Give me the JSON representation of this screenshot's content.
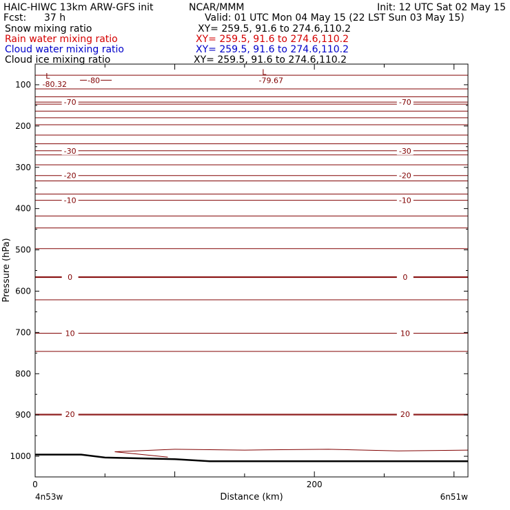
{
  "header": {
    "run_title": "HAIC-HIWC 13km ARW-GFS init",
    "org": "NCAR/MMM",
    "init": "Init: 12 UTC Sat 02 May 15",
    "fcst_label": "Fcst:",
    "fcst_value": "37 h",
    "valid": "Valid: 01 UTC Mon 04 May 15 (22 LST Sun 03 May 15)"
  },
  "fields": [
    {
      "name": "Snow mixing ratio",
      "xy": "XY= 259.5, 91.6 to 274.6,110.2",
      "color": "#000000"
    },
    {
      "name": "Rain water mixing ratio",
      "xy": "XY= 259.5, 91.6 to 274.6,110.2",
      "color": "#d40000"
    },
    {
      "name": "Cloud water mixing ratio",
      "xy": "XY= 259.5, 91.6 to 274.6,110.2",
      "color": "#0000c8"
    },
    {
      "name": "Cloud ice mixing ratio",
      "xy": "XY= 259.5, 91.6 to 274.6,110.2",
      "color": "#000000"
    }
  ],
  "chart_data": {
    "type": "line",
    "xlabel": "Distance (km)",
    "ylabel": "Pressure (hPa)",
    "xlim": [
      0,
      310
    ],
    "ylim": [
      1050,
      50
    ],
    "x_ticks": [
      0,
      200
    ],
    "y_ticks": [
      100,
      200,
      300,
      400,
      500,
      600,
      700,
      800,
      900,
      1000
    ],
    "endpoint_labels": {
      "left": "4n53w",
      "right": "6n51w"
    },
    "contour_color": "#800000",
    "contours": [
      {
        "p": 77
      },
      {
        "p": 110
      },
      {
        "p": 129
      },
      {
        "p": 147
      },
      {
        "p": 164
      },
      {
        "p": 180
      },
      {
        "p": 197
      },
      {
        "p": 222
      },
      {
        "p": 243
      },
      {
        "p": 270
      },
      {
        "p": 294
      },
      {
        "p": 333
      },
      {
        "p": 365
      },
      {
        "p": 418
      },
      {
        "p": 447
      },
      {
        "p": 497
      },
      {
        "p": 621
      },
      {
        "p": 746
      },
      {
        "p": 900
      }
    ],
    "isotherms": [
      {
        "value": "-70",
        "p": 142
      },
      {
        "value": "-30",
        "p": 260
      },
      {
        "value": "-20",
        "p": 320
      },
      {
        "value": "-10",
        "p": 380
      },
      {
        "value": "0",
        "p": 566
      },
      {
        "value": "10",
        "p": 702
      },
      {
        "value": "20",
        "p": 898
      }
    ],
    "extrema": [
      {
        "marker": "L",
        "value": "-80.32",
        "x": 10,
        "p": 95
      },
      {
        "marker": "L",
        "value": "-79.67",
        "x": 165,
        "p": 86
      }
    ],
    "other_labels": [
      {
        "value": "-80",
        "x": 42,
        "p": 89
      }
    ],
    "surface": [
      [
        0,
        996
      ],
      [
        33,
        996
      ],
      [
        50,
        1003
      ],
      [
        100,
        1007
      ],
      [
        125,
        1012
      ],
      [
        310,
        1012
      ]
    ]
  }
}
